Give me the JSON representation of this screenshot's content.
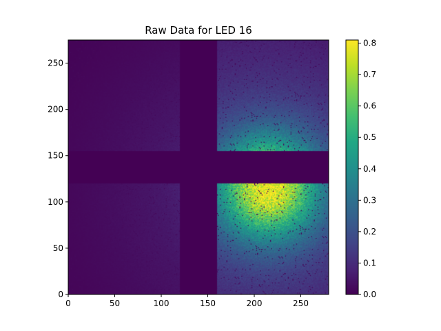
{
  "chart_data": {
    "type": "heatmap",
    "title": "Raw Data for LED 16",
    "xlabel": "",
    "ylabel": "",
    "colormap": "viridis",
    "xlim": [
      0,
      280
    ],
    "ylim": [
      0,
      275
    ],
    "x_ticks": [
      0,
      50,
      100,
      150,
      200,
      250
    ],
    "y_ticks": [
      0,
      50,
      100,
      150,
      200,
      250
    ],
    "colorbar": {
      "range": [
        0.0,
        0.81
      ],
      "ticks": [
        0.0,
        0.1,
        0.2,
        0.3,
        0.4,
        0.5,
        0.6,
        0.7,
        0.8
      ],
      "tick_labels": [
        "0.0",
        "0.1",
        "0.2",
        "0.3",
        "0.4",
        "0.5",
        "0.6",
        "0.7",
        "0.8"
      ]
    },
    "masked_regions": [
      {
        "x": [
          120,
          160
        ],
        "y": [
          0,
          275
        ],
        "value": 0.0
      },
      {
        "x": [
          0,
          280
        ],
        "y": [
          120,
          155
        ],
        "value": 0.0
      }
    ],
    "intensity_peak": {
      "x": 215,
      "y": 115,
      "value": 0.81
    },
    "grid": false
  }
}
